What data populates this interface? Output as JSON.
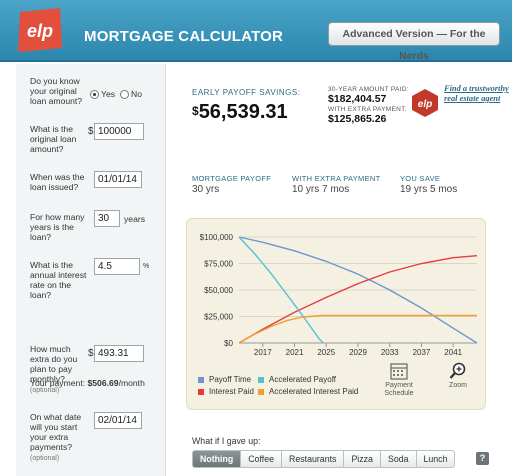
{
  "header": {
    "logo_text": "elp",
    "title": "MORTGAGE CALCULATOR",
    "advanced_label": "Advanced Version — For the Nerds"
  },
  "form": {
    "q_original_known": "Do you know your original loan amount?",
    "yes_label": "Yes",
    "no_label": "No",
    "q_amount": "What is the original loan amount?",
    "amount_value": "100000",
    "q_issued": "When was the loan issued?",
    "issued_value": "01/01/14",
    "q_years": "For how many years is the loan?",
    "years_value": "30",
    "years_suffix": "years",
    "q_rate": "What is the annual interest rate on the loan?",
    "rate_value": "4.5",
    "rate_suffix": "%",
    "payment_label": "Your payment:",
    "payment_value": "$506.69",
    "payment_suffix": "/month",
    "q_extra": "How much extra do you plan to pay monthly?",
    "extra_optional": "(optional)",
    "extra_value": "493.31",
    "q_start": "On what date will you start your extra payments?",
    "start_optional": "(optional)",
    "start_value": "02/01/14",
    "currency_symbol": "$"
  },
  "results": {
    "savings_label": "EARLY PAYOFF SAVINGS:",
    "savings_currency": "$",
    "savings_value": "56,539.31",
    "thirty_label": "30-YEAR AMOUNT PAID:",
    "thirty_value": "$182,404.57",
    "extra_label": "WITH EXTRA PAYMENT:",
    "extra_value": "$125,865.26",
    "agent_icon_text": "elp",
    "agent_link": "Find a trustworthy real estate agent",
    "payoff_label": "MORTGAGE PAYOFF",
    "payoff_value": "30 yrs",
    "with_extra_label": "WITH EXTRA PAYMENT",
    "with_extra_value": "10 yrs 7 mos",
    "you_save_label": "YOU SAVE",
    "you_save_value": "19 yrs 5 mos"
  },
  "chart_data": {
    "type": "line",
    "x_ticks": [
      "2017",
      "2021",
      "2025",
      "2029",
      "2033",
      "2037",
      "2041"
    ],
    "y_ticks": [
      "$100,000",
      "$75,000",
      "$50,000",
      "$25,000",
      "$0"
    ],
    "xlim": [
      2014,
      2044
    ],
    "ylim": [
      0,
      100000
    ],
    "series": [
      {
        "name": "Payoff Time",
        "color": "#6f95c9",
        "x": [
          2014,
          2017,
          2021,
          2025,
          2029,
          2033,
          2037,
          2041,
          2044
        ],
        "y": [
          100000,
          95000,
          87000,
          77000,
          65000,
          50000,
          33000,
          14000,
          0
        ]
      },
      {
        "name": "Interest Paid",
        "color": "#e83a3a",
        "x": [
          2014,
          2017,
          2021,
          2025,
          2029,
          2033,
          2037,
          2041,
          2044
        ],
        "y": [
          0,
          13000,
          29000,
          43000,
          56000,
          67000,
          75000,
          80500,
          82400
        ]
      },
      {
        "name": "Accelerated Payoff",
        "color": "#55c1cf",
        "x": [
          2014,
          2016,
          2018,
          2020,
          2022,
          2024,
          2024.6
        ],
        "y": [
          100000,
          84000,
          66000,
          46000,
          26000,
          5000,
          0
        ]
      },
      {
        "name": "Accelerated Interest Paid",
        "color": "#f0a030",
        "x": [
          2014,
          2016,
          2018,
          2020,
          2022,
          2024.6,
          2044
        ],
        "y": [
          0,
          8500,
          15500,
          21000,
          24500,
          25900,
          25900
        ]
      }
    ]
  },
  "tools": {
    "schedule_label": "Payment Schedule",
    "zoom_label": "Zoom"
  },
  "whatif": {
    "label": "What if I gave up:",
    "tabs": [
      "Nothing",
      "Coffee",
      "Restaurants",
      "Pizza",
      "Soda",
      "Lunch"
    ],
    "help": "?"
  }
}
